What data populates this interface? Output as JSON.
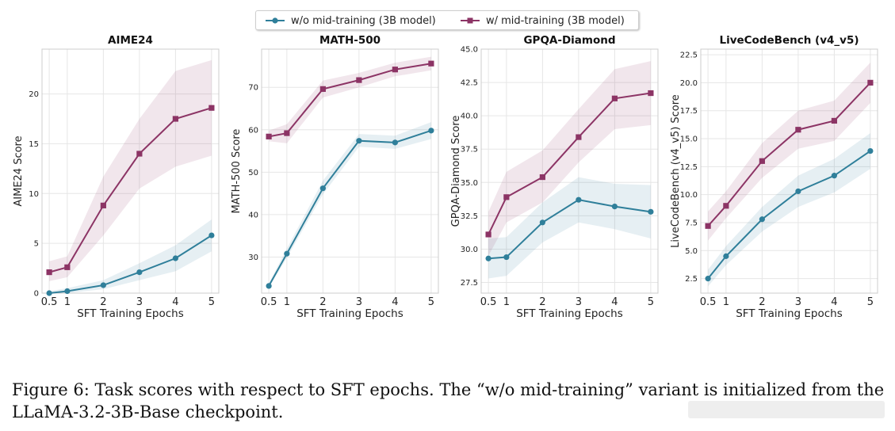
{
  "legend": {
    "items": [
      {
        "label": "w/o mid-training (3B model)",
        "color": "#2f7f9a",
        "marker": "circle"
      },
      {
        "label": "w/ mid-training (3B model)",
        "color": "#8c3465",
        "marker": "square"
      }
    ]
  },
  "caption": "Figure 6: Task scores with respect to SFT epochs. The “w/o mid-training” variant is initialized from the LLaMA-3.2-3B-Base checkpoint.",
  "chart_data": [
    {
      "type": "line",
      "title": "AIME24",
      "xlabel": "SFT Training Epochs",
      "ylabel": "AIME24 Score",
      "x": [
        0.5,
        1,
        2,
        3,
        4,
        5
      ],
      "xticks": [
        "0.5",
        "1",
        "2",
        "3",
        "4",
        "5"
      ],
      "ylim": [
        0,
        24.5
      ],
      "yticks": [
        0,
        5,
        10,
        15,
        20
      ],
      "ytick_labels": [
        "0",
        "5",
        "10",
        "15",
        "20"
      ],
      "grid": true,
      "series": [
        {
          "name": "w/o mid-training (3B model)",
          "values": [
            0.0,
            0.2,
            0.8,
            2.1,
            3.5,
            5.8
          ],
          "lower": [
            0.0,
            0.0,
            0.4,
            1.3,
            2.2,
            4.2
          ],
          "upper": [
            0.2,
            0.5,
            1.3,
            3.0,
            4.8,
            7.4
          ]
        },
        {
          "name": "w/ mid-training (3B model)",
          "values": [
            2.1,
            2.6,
            8.8,
            14.0,
            17.5,
            18.6
          ],
          "lower": [
            1.2,
            1.6,
            5.8,
            10.5,
            12.7,
            13.8
          ],
          "upper": [
            3.2,
            3.7,
            11.7,
            17.5,
            22.3,
            23.4
          ]
        }
      ]
    },
    {
      "type": "line",
      "title": "MATH-500",
      "xlabel": "SFT Training Epochs",
      "ylabel": "MATH-500 Score",
      "x": [
        0.5,
        1,
        2,
        3,
        4,
        5
      ],
      "xticks": [
        "0.5",
        "1",
        "2",
        "3",
        "4",
        "5"
      ],
      "ylim": [
        21.5,
        79
      ],
      "yticks": [
        30,
        40,
        50,
        60,
        70
      ],
      "ytick_labels": [
        "30",
        "40",
        "50",
        "60",
        "70"
      ],
      "grid": true,
      "series": [
        {
          "name": "w/o mid-training (3B model)",
          "values": [
            23.2,
            30.8,
            46.2,
            57.4,
            57.0,
            59.8
          ],
          "lower": [
            22.8,
            29.8,
            44.8,
            56.0,
            55.5,
            57.8
          ],
          "upper": [
            23.8,
            32.0,
            48.0,
            59.0,
            58.6,
            61.8
          ]
        },
        {
          "name": "w/ mid-training (3B model)",
          "values": [
            58.4,
            59.2,
            69.6,
            71.7,
            74.2,
            75.6
          ],
          "lower": [
            57.3,
            56.8,
            67.6,
            70.0,
            72.6,
            74.0
          ],
          "upper": [
            59.8,
            61.3,
            71.6,
            73.4,
            75.8,
            77.2
          ]
        }
      ]
    },
    {
      "type": "line",
      "title": "GPQA-Diamond",
      "xlabel": "SFT Training Epochs",
      "ylabel": "GPQA-Diamond Score",
      "x": [
        0.5,
        1,
        2,
        3,
        4,
        5
      ],
      "xticks": [
        "0.5",
        "1",
        "2",
        "3",
        "4",
        "5"
      ],
      "ylim": [
        26.7,
        45.0
      ],
      "yticks": [
        27.5,
        30.0,
        32.5,
        35.0,
        37.5,
        40.0,
        42.5,
        45.0
      ],
      "ytick_labels": [
        "27.5",
        "30.0",
        "32.5",
        "35.0",
        "37.5",
        "40.0",
        "42.5",
        "45.0"
      ],
      "grid": true,
      "series": [
        {
          "name": "w/o mid-training (3B model)",
          "values": [
            29.3,
            29.4,
            32.0,
            33.7,
            33.2,
            32.8
          ],
          "lower": [
            27.8,
            28.0,
            30.5,
            32.0,
            31.5,
            30.8
          ],
          "upper": [
            30.8,
            30.9,
            33.5,
            35.4,
            34.9,
            34.8
          ]
        },
        {
          "name": "w/ mid-training (3B model)",
          "values": [
            31.1,
            33.9,
            35.4,
            38.4,
            41.3,
            41.7
          ],
          "lower": [
            29.5,
            32.0,
            33.5,
            36.5,
            39.0,
            39.3
          ],
          "upper": [
            32.8,
            35.8,
            37.4,
            40.5,
            43.5,
            44.1
          ]
        }
      ]
    },
    {
      "type": "line",
      "title": "LiveCodeBench (v4_v5)",
      "xlabel": "SFT Training Epochs",
      "ylabel": "LiveCodeBench (v4_v5) Score",
      "x": [
        0.5,
        1,
        2,
        3,
        4,
        5
      ],
      "xticks": [
        "0.5",
        "1",
        "2",
        "3",
        "4",
        "5"
      ],
      "ylim": [
        1.2,
        23.0
      ],
      "yticks": [
        2.5,
        5.0,
        7.5,
        10.0,
        12.5,
        15.0,
        17.5,
        20.0,
        22.5
      ],
      "ytick_labels": [
        "2.5",
        "5.0",
        "7.5",
        "10.0",
        "12.5",
        "15.0",
        "17.5",
        "20.0",
        "22.5"
      ],
      "grid": true,
      "series": [
        {
          "name": "w/o mid-training (3B model)",
          "values": [
            2.5,
            4.5,
            7.8,
            10.3,
            11.7,
            13.9
          ],
          "lower": [
            1.8,
            3.7,
            6.7,
            8.9,
            10.2,
            12.3
          ],
          "upper": [
            3.3,
            5.4,
            8.9,
            11.7,
            13.2,
            15.5
          ]
        },
        {
          "name": "w/ mid-training (3B model)",
          "values": [
            7.2,
            9.0,
            13.0,
            15.8,
            16.6,
            20.0
          ],
          "lower": [
            5.9,
            7.9,
            11.5,
            14.1,
            14.8,
            18.2
          ],
          "upper": [
            8.5,
            10.3,
            14.6,
            17.5,
            18.4,
            21.8
          ]
        }
      ]
    }
  ]
}
